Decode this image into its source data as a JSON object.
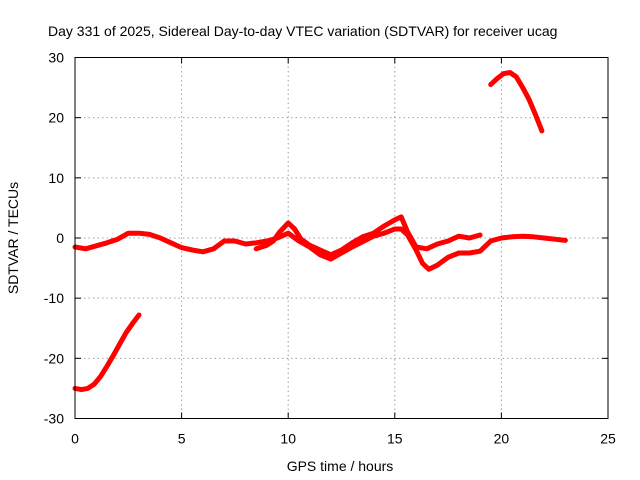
{
  "chart_data": {
    "type": "line",
    "title": "Day 331 of 2025, Sidereal Day-to-day VTEC variation (SDTVAR) for receiver ucag",
    "xlabel": "GPS time / hours",
    "ylabel": "SDTVAR / TECUs",
    "xlim": [
      0,
      25
    ],
    "ylim": [
      -30,
      30
    ],
    "x_ticks": [
      0,
      5,
      10,
      15,
      20,
      25
    ],
    "y_ticks": [
      -30,
      -20,
      -10,
      0,
      10,
      20,
      30
    ],
    "x_tick_labels": [
      "0",
      "5",
      "10",
      "15",
      "20",
      "25"
    ],
    "y_tick_labels": [
      "-30",
      "-20",
      "-10",
      "0",
      "10",
      "20",
      "30"
    ],
    "grid": true,
    "series_color": "#ff0000",
    "series": [
      {
        "name": "descending-pass-start",
        "x": [
          0.0,
          0.3,
          0.6,
          0.9,
          1.2,
          1.5,
          1.8,
          2.1,
          2.4,
          2.7,
          3.0
        ],
        "y": [
          -25.0,
          -25.2,
          -25.0,
          -24.3,
          -23.0,
          -21.3,
          -19.5,
          -17.6,
          -15.7,
          -14.2,
          -12.8
        ]
      },
      {
        "name": "main-trace-a",
        "x": [
          0.0,
          0.5,
          1.0,
          1.5,
          2.0,
          2.5,
          3.0,
          3.5,
          4.0,
          4.5,
          5.0,
          5.5,
          6.0,
          6.5,
          7.0,
          7.5,
          8.0,
          8.5,
          9.0,
          9.5,
          10.0,
          10.5,
          11.0,
          11.5,
          12.0,
          12.5,
          13.0,
          13.5,
          14.0,
          14.5,
          15.0,
          15.3,
          15.6,
          16.0,
          16.3,
          16.6,
          17.0,
          17.5,
          18.0,
          18.5,
          19.0,
          19.5,
          20.0,
          20.5,
          21.0,
          21.5,
          22.0,
          22.5,
          23.0
        ],
        "y": [
          -1.5,
          -1.8,
          -1.3,
          -0.8,
          -0.2,
          0.8,
          0.8,
          0.6,
          0.0,
          -0.8,
          -1.6,
          -2.0,
          -2.3,
          -1.8,
          -0.5,
          -0.5,
          -1.0,
          -0.8,
          -0.5,
          0.0,
          0.8,
          -0.5,
          -1.5,
          -2.8,
          -3.5,
          -2.5,
          -1.5,
          -0.6,
          0.3,
          0.8,
          1.5,
          1.5,
          0.5,
          -2.0,
          -4.2,
          -5.2,
          -4.5,
          -3.2,
          -2.5,
          -2.5,
          -2.2,
          -0.5,
          0.0,
          0.2,
          0.3,
          0.2,
          0.0,
          -0.2,
          -0.4
        ]
      },
      {
        "name": "main-trace-b",
        "x": [
          8.5,
          9.0,
          9.3,
          9.6,
          10.0,
          10.3,
          10.6,
          11.0,
          11.5,
          12.0,
          12.5,
          13.0,
          13.5,
          14.0,
          14.5,
          15.0,
          15.3,
          15.6,
          16.0,
          16.5,
          17.0,
          17.5,
          18.0,
          18.5,
          19.0
        ],
        "y": [
          -1.8,
          -1.2,
          -0.5,
          1.0,
          2.5,
          1.5,
          -0.2,
          -1.2,
          -2.0,
          -2.8,
          -2.0,
          -0.8,
          0.2,
          0.8,
          2.0,
          3.0,
          3.5,
          1.0,
          -1.5,
          -1.8,
          -1.0,
          -0.5,
          0.3,
          0.0,
          0.5
        ]
      },
      {
        "name": "evening-pass-end",
        "x": [
          19.5,
          19.8,
          20.1,
          20.4,
          20.7,
          21.0,
          21.3,
          21.6,
          21.9
        ],
        "y": [
          25.5,
          26.5,
          27.3,
          27.5,
          26.8,
          25.0,
          23.0,
          20.5,
          17.8
        ]
      }
    ]
  }
}
